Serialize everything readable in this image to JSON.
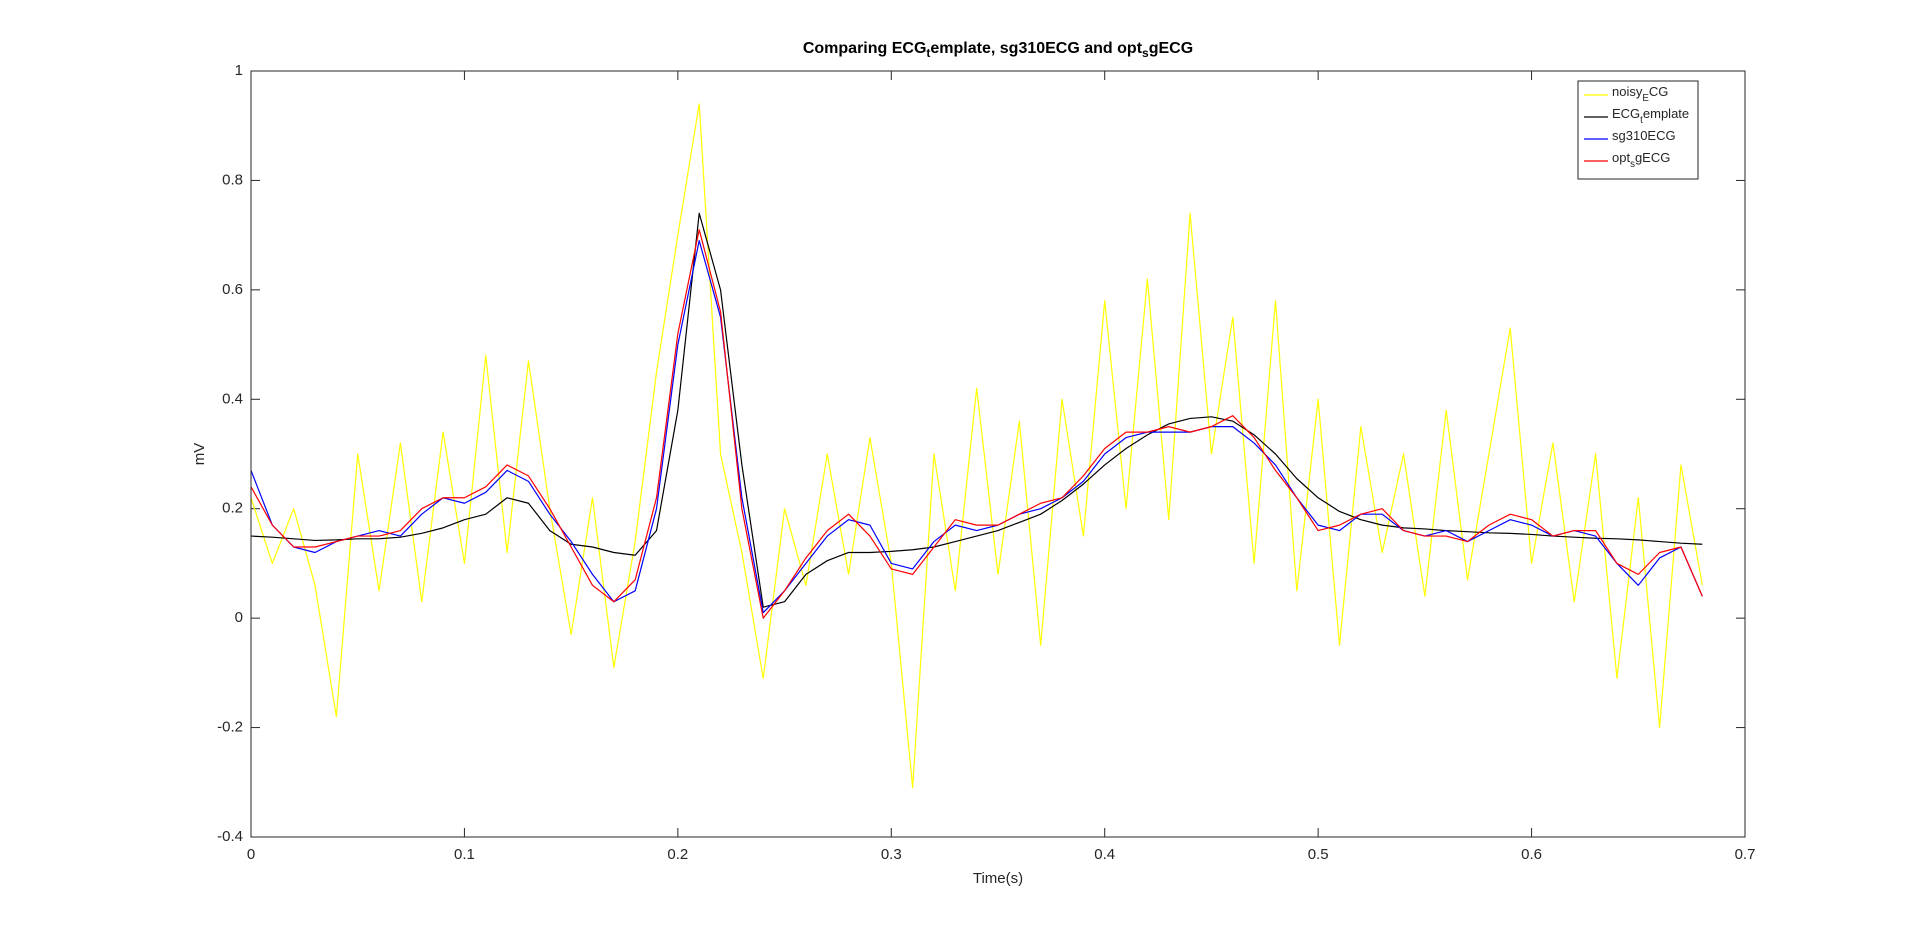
{
  "chart_data": {
    "type": "line",
    "title": "Comparing ECG_template, sg310ECG and opt_sgECG",
    "x_label": "Time(s)",
    "y_label": "mV",
    "xlim": [
      0,
      0.7
    ],
    "xticks": [
      0,
      0.1,
      0.2,
      0.3,
      0.4,
      0.5,
      0.6,
      0.7
    ],
    "ylim": [
      -0.4,
      1
    ],
    "yticks": [
      -0.4,
      -0.2,
      0,
      0.2,
      0.4,
      0.6,
      0.8,
      1
    ],
    "legend": "northeast",
    "box": true,
    "x": [
      0,
      0.01,
      0.02,
      0.03,
      0.04,
      0.05,
      0.06,
      0.07,
      0.08,
      0.09,
      0.1,
      0.11,
      0.12,
      0.13,
      0.14,
      0.15,
      0.16,
      0.17,
      0.18,
      0.19,
      0.2,
      0.21,
      0.22,
      0.23,
      0.24,
      0.25,
      0.26,
      0.27,
      0.28,
      0.29,
      0.3,
      0.31,
      0.32,
      0.33,
      0.34,
      0.35,
      0.36,
      0.37,
      0.38,
      0.39,
      0.4,
      0.41,
      0.42,
      0.43,
      0.44,
      0.45,
      0.46,
      0.47,
      0.48,
      0.49,
      0.5,
      0.51,
      0.52,
      0.53,
      0.54,
      0.55,
      0.56,
      0.57,
      0.58,
      0.59,
      0.6,
      0.61,
      0.62,
      0.63,
      0.64,
      0.65,
      0.66,
      0.67,
      0.68
    ],
    "series": [
      {
        "name": "noisy_ECG",
        "color": "#ffff00",
        "values": [
          0.22,
          0.1,
          0.2,
          0.06,
          -0.18,
          0.3,
          0.05,
          0.32,
          0.03,
          0.34,
          0.1,
          0.48,
          0.12,
          0.47,
          0.2,
          -0.03,
          0.22,
          -0.09,
          0.14,
          0.45,
          0.7,
          0.94,
          0.3,
          0.12,
          -0.11,
          0.2,
          0.06,
          0.3,
          0.08,
          0.33,
          0.1,
          -0.31,
          0.3,
          0.05,
          0.42,
          0.08,
          0.36,
          -0.05,
          0.4,
          0.15,
          0.58,
          0.2,
          0.62,
          0.18,
          0.74,
          0.3,
          0.55,
          0.1,
          0.58,
          0.05,
          0.4,
          -0.05,
          0.35,
          0.12,
          0.3,
          0.04,
          0.38,
          0.07,
          0.3,
          0.53,
          0.1,
          0.32,
          0.03,
          0.3,
          -0.11,
          0.22,
          -0.2,
          0.28,
          0.06
        ]
      },
      {
        "name": "ECG_template",
        "color": "#000000",
        "values": [
          0.15,
          0.148,
          0.145,
          0.142,
          0.143,
          0.145,
          0.145,
          0.148,
          0.155,
          0.165,
          0.18,
          0.19,
          0.22,
          0.21,
          0.16,
          0.135,
          0.13,
          0.12,
          0.115,
          0.16,
          0.38,
          0.74,
          0.6,
          0.28,
          0.02,
          0.03,
          0.08,
          0.105,
          0.12,
          0.12,
          0.122,
          0.125,
          0.13,
          0.14,
          0.15,
          0.16,
          0.175,
          0.19,
          0.215,
          0.245,
          0.28,
          0.31,
          0.335,
          0.355,
          0.365,
          0.368,
          0.36,
          0.335,
          0.3,
          0.255,
          0.22,
          0.195,
          0.18,
          0.17,
          0.165,
          0.163,
          0.16,
          0.158,
          0.156,
          0.155,
          0.153,
          0.15,
          0.148,
          0.146,
          0.145,
          0.143,
          0.14,
          0.137,
          0.135
        ]
      },
      {
        "name": "sg310ECG",
        "color": "#0000ff",
        "values": [
          0.27,
          0.17,
          0.13,
          0.12,
          0.14,
          0.15,
          0.16,
          0.15,
          0.19,
          0.22,
          0.21,
          0.23,
          0.27,
          0.25,
          0.19,
          0.14,
          0.08,
          0.03,
          0.05,
          0.2,
          0.5,
          0.69,
          0.55,
          0.22,
          0.01,
          0.05,
          0.1,
          0.15,
          0.18,
          0.17,
          0.1,
          0.09,
          0.14,
          0.17,
          0.16,
          0.17,
          0.19,
          0.2,
          0.22,
          0.25,
          0.3,
          0.33,
          0.34,
          0.34,
          0.34,
          0.35,
          0.35,
          0.32,
          0.28,
          0.22,
          0.17,
          0.16,
          0.19,
          0.19,
          0.16,
          0.15,
          0.16,
          0.14,
          0.16,
          0.18,
          0.17,
          0.15,
          0.16,
          0.15,
          0.1,
          0.06,
          0.11,
          0.13,
          0.04
        ]
      },
      {
        "name": "opt_sgECG",
        "color": "#ff0000",
        "values": [
          0.24,
          0.17,
          0.13,
          0.13,
          0.14,
          0.15,
          0.15,
          0.16,
          0.2,
          0.22,
          0.22,
          0.24,
          0.28,
          0.26,
          0.2,
          0.13,
          0.06,
          0.03,
          0.07,
          0.22,
          0.52,
          0.71,
          0.56,
          0.2,
          0,
          0.05,
          0.11,
          0.16,
          0.19,
          0.15,
          0.09,
          0.08,
          0.13,
          0.18,
          0.17,
          0.17,
          0.19,
          0.21,
          0.22,
          0.26,
          0.31,
          0.34,
          0.34,
          0.35,
          0.34,
          0.35,
          0.37,
          0.33,
          0.27,
          0.22,
          0.16,
          0.17,
          0.19,
          0.2,
          0.16,
          0.15,
          0.15,
          0.14,
          0.17,
          0.19,
          0.18,
          0.15,
          0.16,
          0.16,
          0.1,
          0.08,
          0.12,
          0.13,
          0.04
        ]
      }
    ]
  }
}
